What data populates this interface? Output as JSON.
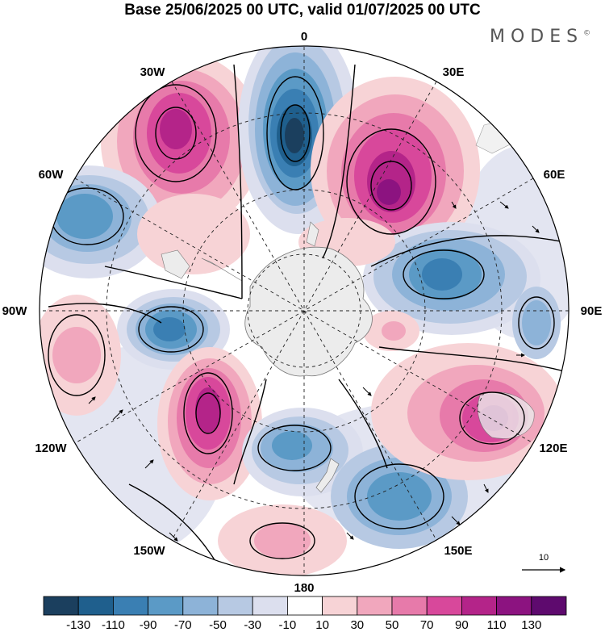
{
  "title": "Base 25/06/2025 00 UTC, valid 01/07/2025 00 UTC",
  "brand": "MODES",
  "brand_mark": "©",
  "map": {
    "projection": "south-polar-stereographic",
    "longitude_labels": {
      "top": "0",
      "top_right": "30E",
      "right_upper": "60E",
      "right": "90E",
      "right_lower": "120E",
      "bottom_right": "150E",
      "bottom": "180",
      "bottom_left": "150W",
      "left_lower": "120W",
      "left": "90W",
      "left_upper": "60W",
      "top_left": "30W"
    },
    "wind_reference_label": "10",
    "fields": [
      "geopotential-height-anomaly-shading",
      "wind-vectors",
      "streamlines"
    ]
  },
  "colorbar": {
    "tick_labels": [
      "-130",
      "-110",
      "-90",
      "-70",
      "-50",
      "-30",
      "-10",
      "10",
      "30",
      "50",
      "70",
      "90",
      "110",
      "130"
    ],
    "colors": [
      "#1b3f5e",
      "#1f5f8d",
      "#3a7fb3",
      "#5b9ac6",
      "#8db3d8",
      "#b7c9e3",
      "#dcdfee",
      "#ffffff",
      "#f7d3d6",
      "#f1a7bd",
      "#e77aaa",
      "#d8489b",
      "#b42489",
      "#8c1380",
      "#5e0a6e"
    ]
  }
}
